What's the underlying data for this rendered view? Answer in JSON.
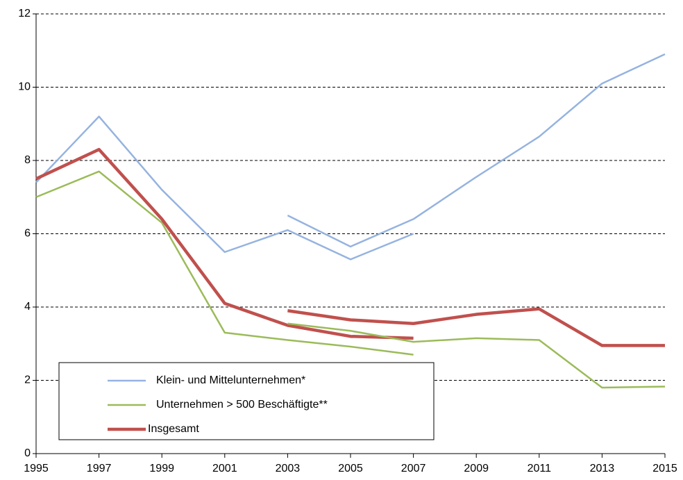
{
  "chart_data": {
    "type": "line",
    "x": [
      1995,
      1997,
      1999,
      2001,
      2003,
      2005,
      2007,
      2009,
      2011,
      2013,
      2015
    ],
    "xlim": [
      1995,
      2015
    ],
    "xticks": [
      1995,
      1997,
      1999,
      2001,
      2003,
      2005,
      2007,
      2009,
      2011,
      2013,
      2015
    ],
    "ylim": [
      0,
      12
    ],
    "yticks": [
      0,
      2,
      4,
      6,
      8,
      10,
      12
    ],
    "grid": true,
    "legend": "lower left",
    "series": [
      {
        "name": "Klein- und Mittelunternehmen*",
        "color": "#95b3e0",
        "values": [
          7.4,
          9.2,
          7.2,
          5.5,
          6.1,
          5.3,
          6.0,
          null,
          null,
          null,
          null
        ]
      },
      {
        "name": "Unternehmen > 500 Beschäftigte**",
        "color": "#9bbb59",
        "values": [
          7.0,
          7.7,
          6.3,
          3.3,
          3.1,
          2.92,
          2.7,
          null,
          null,
          null,
          null
        ]
      },
      {
        "name": "Insgesamt",
        "color": "#c0504d",
        "values": [
          7.5,
          8.3,
          6.4,
          4.1,
          3.5,
          3.2,
          3.15,
          null,
          null,
          null,
          null
        ]
      },
      {
        "color": "#95b3e0",
        "values": [
          null,
          null,
          null,
          null,
          6.5,
          5.65,
          6.4,
          7.55,
          8.65,
          10.1,
          10.9
        ]
      },
      {
        "color": "#9bbb59",
        "values": [
          null,
          null,
          null,
          null,
          3.55,
          3.35,
          3.05,
          3.15,
          3.1,
          1.8,
          1.83
        ]
      },
      {
        "color": "#c0504d",
        "values": [
          null,
          null,
          null,
          null,
          3.9,
          3.65,
          3.55,
          3.8,
          3.95,
          2.95,
          2.95
        ]
      }
    ]
  }
}
